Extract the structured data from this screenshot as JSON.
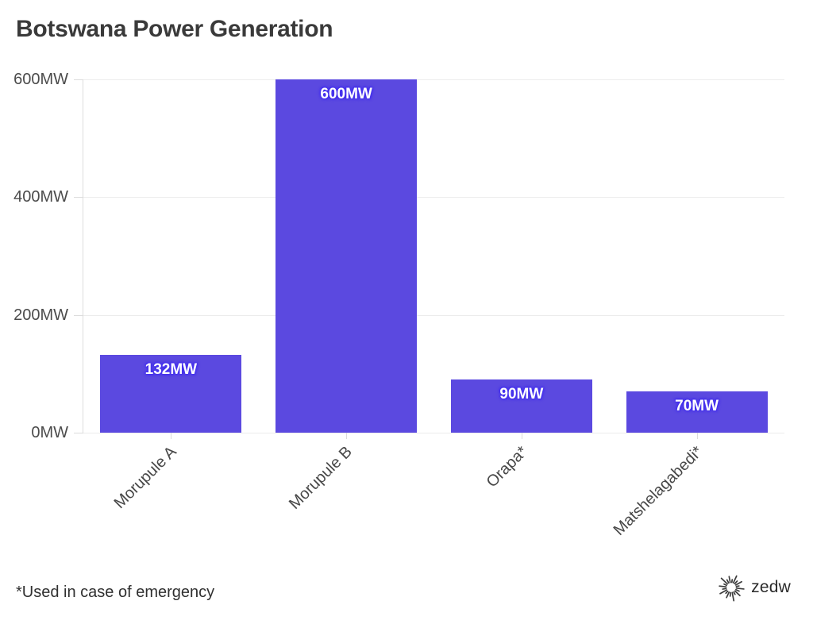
{
  "chart": {
    "title": "Botswana Power Generation",
    "footnote": "*Used in case of emergency",
    "logo_text": "zedw"
  },
  "chart_data": {
    "type": "bar",
    "title": "Botswana Power Generation",
    "categories": [
      "Morupule A",
      "Morupule B",
      "Orapa*",
      "Matshelagabedi*"
    ],
    "values": [
      132,
      600,
      90,
      70
    ],
    "bar_labels": [
      "132MW",
      "600MW",
      "90MW",
      "70MW"
    ],
    "y_ticks": [
      {
        "value": 0,
        "label": "0MW"
      },
      {
        "value": 200,
        "label": "200MW"
      },
      {
        "value": 400,
        "label": "400MW"
      },
      {
        "value": 600,
        "label": "600MW"
      }
    ],
    "ylim": [
      0,
      600
    ],
    "xlabel": "",
    "ylabel": "",
    "grid": "horizontal",
    "legend": "none",
    "footnote": "*Used in case of emergency",
    "colors": {
      "bar": "#5b49e0",
      "bar_label_text": "#ffffff",
      "bar_label_glow": "#4531ee",
      "grid": "#ececec",
      "axis": "#dcdcdc",
      "tick_text": "#4b4b4b",
      "title_text": "#3a3a3a",
      "background": "#ffffff"
    }
  }
}
